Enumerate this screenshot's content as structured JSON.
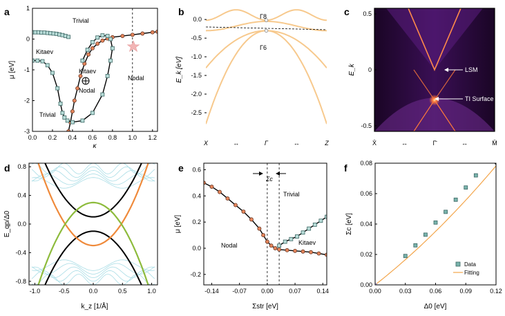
{
  "colors": {
    "ink": "#000000",
    "square_fill": "#b8dcd8",
    "square_edge": "#3b6663",
    "circle_fill": "#e3845a",
    "circle_edge": "#5a2d1d",
    "orange_band": "#f7c98d",
    "orange_thick": "#ef8a3b",
    "green_thick": "#8dbb3c",
    "cyan_thin": "#a9dde6",
    "star": "#f2b4b4",
    "fit_line": "#f3a54a",
    "data_square": "#78b3ac"
  },
  "chart_data": [
    {
      "panel": "a",
      "type": "line",
      "xlabel": "κ",
      "ylabel": "μ [eV]",
      "xlim": [
        0.0,
        1.25
      ],
      "ylim": [
        -3,
        1
      ],
      "xticks": [
        "0.0",
        "0.2",
        "0.4",
        "0.6",
        "0.8",
        "1.0",
        "1.2"
      ],
      "yticks": [
        "1",
        "0",
        "-1",
        "-2",
        "-3"
      ],
      "series": [
        {
          "marker": "square",
          "x": [
            0.0,
            0.03,
            0.06,
            0.09,
            0.12,
            0.15,
            0.18,
            0.21,
            0.24,
            0.27,
            0.3,
            0.33,
            0.36
          ],
          "y": [
            0.22,
            0.22,
            0.22,
            0.21,
            0.21,
            0.2,
            0.19,
            0.18,
            0.17,
            0.15,
            0.13,
            0.1,
            0.07
          ]
        },
        {
          "marker": "circle",
          "x": [
            0.36,
            0.38,
            0.4,
            0.42,
            0.45,
            0.48,
            0.52,
            0.56,
            0.6,
            0.65,
            0.7,
            0.75,
            0.8,
            0.9,
            1.0,
            1.1,
            1.2,
            1.25
          ],
          "y": [
            -3.0,
            -2.7,
            -2.35,
            -2.0,
            -1.6,
            -1.2,
            -0.8,
            -0.5,
            -0.3,
            -0.15,
            -0.05,
            0.02,
            0.06,
            0.1,
            0.14,
            0.18,
            0.22,
            0.24
          ]
        },
        {
          "marker": "square",
          "x": [
            0.0,
            0.05,
            0.1,
            0.15,
            0.2,
            0.25,
            0.28,
            0.3,
            0.32,
            0.35,
            0.4,
            0.5,
            0.6,
            0.7,
            0.75,
            0.78,
            0.8,
            0.78,
            0.75,
            0.7,
            0.65,
            0.6,
            0.55,
            0.5
          ],
          "y": [
            -0.7,
            -0.7,
            -0.72,
            -0.85,
            -1.1,
            -1.6,
            -2.1,
            -2.4,
            -2.55,
            -2.65,
            -2.7,
            -2.65,
            -2.4,
            -1.8,
            -1.2,
            -0.7,
            -0.3,
            0.0,
            0.1,
            0.12,
            0.05,
            -0.1,
            -0.35,
            -0.7
          ]
        }
      ],
      "vline": 1.0,
      "annotations": [
        "Trivial",
        "Kitaev",
        "Kitaev",
        "Nodal",
        "Trivial",
        "Nodal"
      ]
    },
    {
      "panel": "b",
      "type": "line",
      "ylabel": "E_k [eV]",
      "ylim": [
        -3.0,
        0.3
      ],
      "yticks": [
        "0.0",
        "-0.5",
        "-1.0",
        "-1.5",
        "-2.0",
        "-2.5"
      ],
      "xticks": [
        "X",
        "↔",
        "Γ",
        "↔",
        "Z"
      ],
      "point_labels": [
        "Γ8",
        "Γ6"
      ]
    },
    {
      "panel": "c",
      "type": "heatmap",
      "ylabel": "E_k",
      "ylim": [
        -0.55,
        0.55
      ],
      "yticks": [
        "0.5",
        "0",
        "-0.5"
      ],
      "xticks": [
        "X̄",
        "↔",
        "Γ̄",
        "↔",
        "M̄"
      ],
      "annotations": [
        "LSM",
        "TI Surface"
      ]
    },
    {
      "panel": "d",
      "type": "line",
      "xlabel": "k_z [1/Å]",
      "ylabel": "E_qp/Δ0",
      "xlim": [
        -1.1,
        1.1
      ],
      "ylim": [
        -0.85,
        0.85
      ],
      "xticks": [
        "-1.0",
        "-0.5",
        "0.0",
        "0.5",
        "1.0"
      ],
      "yticks": [
        "0.8",
        "0.4",
        "0.0",
        "-0.4",
        "-0.8"
      ]
    },
    {
      "panel": "e",
      "type": "line",
      "xlabel": "Σstr [eV]",
      "ylabel": "μ [eV]",
      "xlim": [
        -0.16,
        0.15
      ],
      "ylim": [
        -0.28,
        0.65
      ],
      "xticks": [
        "-0.14",
        "-0.07",
        "0.00",
        "0.07",
        "0.14"
      ],
      "yticks": [
        "0.6",
        "0.4",
        "0.2",
        "0.0",
        "-0.2"
      ],
      "series": [
        {
          "marker": "circle",
          "x": [
            -0.16,
            -0.14,
            -0.12,
            -0.1,
            -0.08,
            -0.06,
            -0.04,
            -0.02,
            -0.01,
            0.0,
            0.01,
            0.02,
            0.03,
            0.05,
            0.07,
            0.09,
            0.11,
            0.13,
            0.15
          ],
          "y": [
            0.5,
            0.47,
            0.43,
            0.38,
            0.33,
            0.28,
            0.22,
            0.15,
            0.1,
            0.05,
            0.02,
            0.0,
            -0.01,
            -0.015,
            -0.02,
            -0.025,
            -0.03,
            -0.04,
            -0.05
          ]
        },
        {
          "marker": "square",
          "x": [
            0.03,
            0.045,
            0.06,
            0.075,
            0.09,
            0.105,
            0.12,
            0.135,
            0.15
          ],
          "y": [
            0.02,
            0.05,
            0.07,
            0.09,
            0.12,
            0.15,
            0.18,
            0.21,
            0.24
          ]
        }
      ],
      "vlines": [
        0.0,
        0.03
      ],
      "annotations": [
        "Σc",
        "Trivial",
        "Nodal",
        "Kitaev"
      ]
    },
    {
      "panel": "f",
      "type": "scatter",
      "xlabel": "Δ0 [eV]",
      "ylabel": "Σc [eV]",
      "xlim": [
        0.0,
        0.12
      ],
      "ylim": [
        0.0,
        0.08
      ],
      "xticks": [
        "0.00",
        "0.03",
        "0.06",
        "0.09",
        "0.12"
      ],
      "yticks": [
        "0.08",
        "0.06",
        "0.04",
        "0.02",
        "0.00"
      ],
      "series": [
        {
          "name": "Data",
          "x": [
            0.03,
            0.04,
            0.05,
            0.06,
            0.07,
            0.08,
            0.09,
            0.1
          ],
          "y": [
            0.019,
            0.026,
            0.033,
            0.041,
            0.048,
            0.056,
            0.064,
            0.072
          ]
        },
        {
          "name": "Fitting",
          "type": "line"
        }
      ],
      "legend": "lower-right"
    }
  ],
  "panel_labels": [
    "a",
    "b",
    "c",
    "d",
    "e",
    "f"
  ]
}
